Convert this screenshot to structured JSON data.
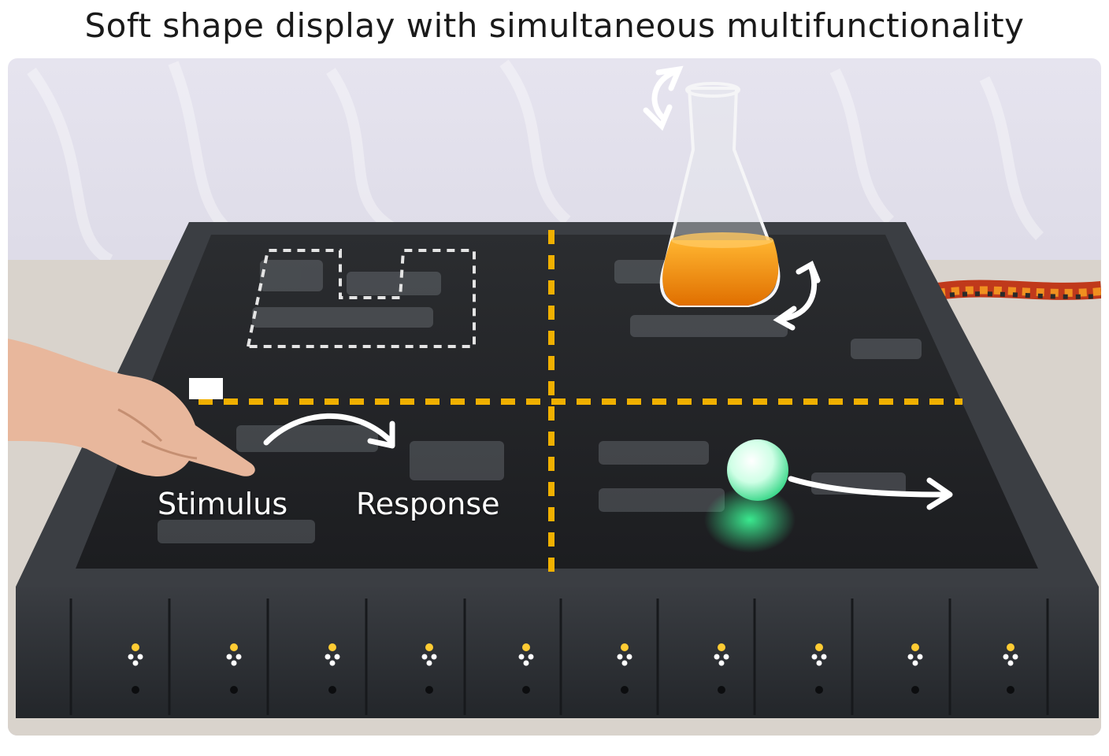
{
  "title": "Soft shape display with simultaneous multifunctionality",
  "labels": {
    "stimulus": "Stimulus",
    "response": "Response"
  },
  "colors": {
    "divider": "#f0b000",
    "arrow": "#ffffff",
    "led_on": "#ffcc33",
    "ball": "#3dff9a",
    "liquid": "#f08a00"
  },
  "icons": [
    "curved-arrow-icon",
    "rotate-arrow-icon",
    "right-arrow-icon"
  ]
}
